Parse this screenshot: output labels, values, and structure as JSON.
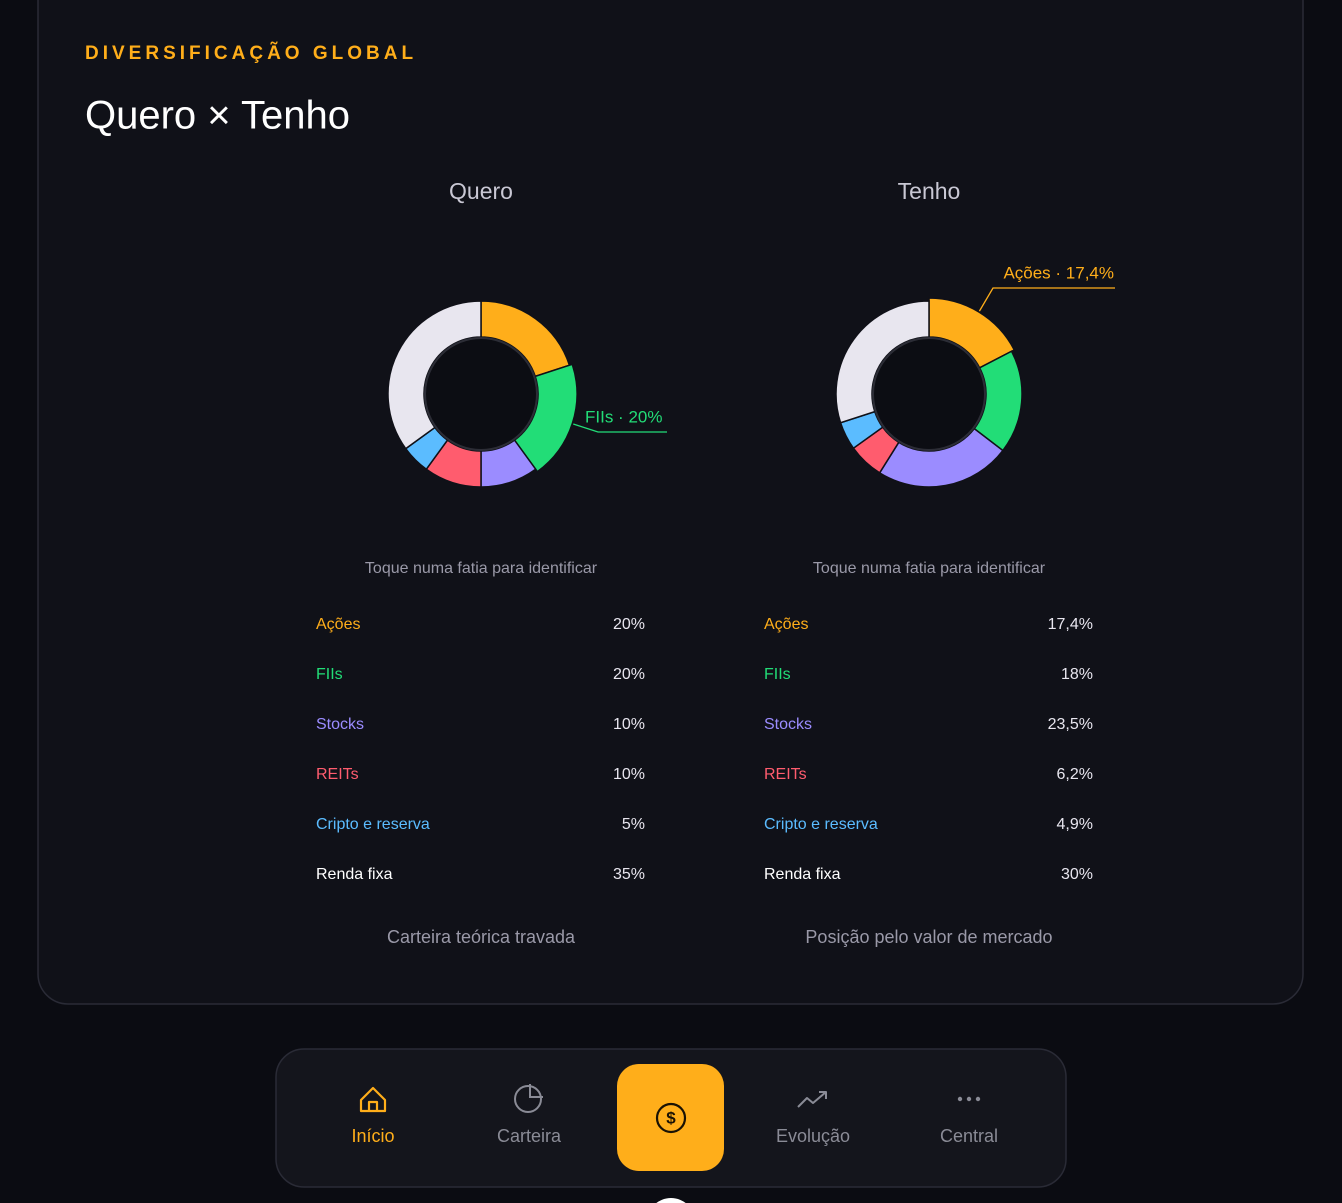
{
  "header": {
    "eyebrow": "DIVERSIFICAÇÃO GLOBAL",
    "title": "Quero × Tenho"
  },
  "chart_data": [
    {
      "type": "pie",
      "title": "Quero",
      "hint": "Toque numa fatia para identificar",
      "categories": [
        "Ações",
        "FIIs",
        "Stocks",
        "REITs",
        "Cripto e reserva",
        "Renda fixa"
      ],
      "values": [
        20,
        20,
        10,
        10,
        5,
        35
      ],
      "value_labels": [
        "20%",
        "20%",
        "10%",
        "10%",
        "5%",
        "35%"
      ],
      "colors": [
        "#ffae1a",
        "#22dd77",
        "#9b8cff",
        "#ff5c6e",
        "#5bbcff",
        "#e8e6ef"
      ],
      "callout": "FIIs · 20%",
      "caption": "Carteira teórica travada"
    },
    {
      "type": "pie",
      "title": "Tenho",
      "hint": "Toque numa fatia para identificar",
      "categories": [
        "Ações",
        "FIIs",
        "Stocks",
        "REITs",
        "Cripto e reserva",
        "Renda fixa"
      ],
      "values": [
        17.4,
        18,
        23.5,
        6.2,
        4.9,
        30
      ],
      "value_labels": [
        "17,4%",
        "18%",
        "23,5%",
        "6,2%",
        "4,9%",
        "30%"
      ],
      "colors": [
        "#ffae1a",
        "#22dd77",
        "#9b8cff",
        "#ff5c6e",
        "#5bbcff",
        "#e8e6ef"
      ],
      "callout": "Ações · 17,4%",
      "caption": "Posição pelo valor de mercado"
    }
  ],
  "nav": {
    "items": [
      "Início",
      "Carteira",
      "Evolução",
      "Central"
    ]
  }
}
